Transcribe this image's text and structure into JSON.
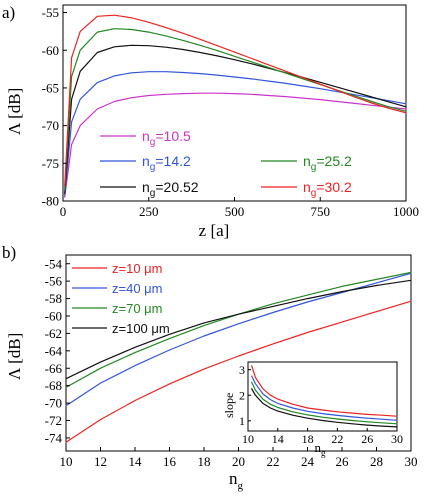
{
  "chart_data": [
    {
      "panel": "a)",
      "type": "line",
      "xlabel": "z [a]",
      "ylabel": "Λ [dB]",
      "xlim": [
        0,
        1000
      ],
      "ylim": [
        -80,
        -54
      ],
      "xticks": [
        0,
        250,
        500,
        750,
        1000
      ],
      "yticks": [
        -80,
        -75,
        -70,
        -65,
        -60,
        -55
      ],
      "grid": false,
      "legend_placement": "lower-center",
      "series": [
        {
          "name": "ng=10.5",
          "name_base": "n",
          "name_sub": "g",
          "name_rest": "=10.5",
          "color": "#cc33cc",
          "x": [
            5,
            25,
            50,
            100,
            150,
            200,
            250,
            300,
            350,
            400,
            450,
            500,
            550,
            600,
            650,
            700,
            750,
            800,
            850,
            900,
            950,
            1000
          ],
          "y": [
            -79.5,
            -72.5,
            -70,
            -67.8,
            -66.8,
            -66.3,
            -66,
            -65.85,
            -65.75,
            -65.7,
            -65.7,
            -65.75,
            -65.85,
            -66,
            -66.15,
            -66.35,
            -66.55,
            -66.8,
            -67.05,
            -67.3,
            -67.55,
            -67.8
          ]
        },
        {
          "name": "ng=14.2",
          "name_base": "n",
          "name_sub": "g",
          "name_rest": "=14.2",
          "color": "#3355dd",
          "x": [
            5,
            25,
            50,
            100,
            150,
            200,
            250,
            300,
            350,
            400,
            450,
            500,
            550,
            600,
            650,
            700,
            750,
            800,
            850,
            900,
            950,
            1000
          ],
          "y": [
            -79.3,
            -69.5,
            -66.5,
            -64.3,
            -63.4,
            -63,
            -62.85,
            -62.85,
            -62.95,
            -63.1,
            -63.3,
            -63.55,
            -63.8,
            -64.1,
            -64.4,
            -64.75,
            -65.1,
            -65.5,
            -65.9,
            -66.3,
            -66.7,
            -67.1
          ]
        },
        {
          "name": "ng=20.52",
          "name_base": "n",
          "name_sub": "g",
          "name_rest": "=20.52",
          "color": "#111111",
          "x": [
            5,
            25,
            50,
            100,
            150,
            200,
            250,
            300,
            350,
            400,
            450,
            500,
            550,
            600,
            650,
            700,
            750,
            800,
            850,
            900,
            950,
            1000
          ],
          "y": [
            -79,
            -66.5,
            -62.8,
            -60.3,
            -59.55,
            -59.35,
            -59.4,
            -59.6,
            -59.9,
            -60.3,
            -60.75,
            -61.25,
            -61.8,
            -62.4,
            -63,
            -63.6,
            -64.25,
            -64.9,
            -65.55,
            -66.2,
            -66.85,
            -67.5
          ]
        },
        {
          "name": "ng=25.2",
          "name_base": "n",
          "name_sub": "g",
          "name_rest": "=25.2",
          "color": "#228822",
          "x": [
            5,
            25,
            50,
            100,
            150,
            200,
            250,
            300,
            350,
            400,
            450,
            500,
            550,
            600,
            650,
            700,
            750,
            800,
            850,
            900,
            950,
            1000
          ],
          "y": [
            -78.5,
            -63.5,
            -60,
            -57.6,
            -57.15,
            -57.25,
            -57.6,
            -58.1,
            -58.7,
            -59.35,
            -60.05,
            -60.8,
            -61.55,
            -62.3,
            -63.05,
            -63.8,
            -64.55,
            -65.3,
            -66.05,
            -66.8,
            -67.5,
            -68.1
          ]
        },
        {
          "name": "ng=30.2",
          "name_base": "n",
          "name_sub": "g",
          "name_rest": "=30.2",
          "color": "#ee2222",
          "x": [
            5,
            25,
            50,
            100,
            150,
            200,
            250,
            300,
            350,
            400,
            450,
            500,
            550,
            600,
            650,
            700,
            750,
            800,
            850,
            900,
            950,
            1000
          ],
          "y": [
            -78,
            -61,
            -57.5,
            -55.5,
            -55.35,
            -55.7,
            -56.3,
            -57,
            -57.75,
            -58.55,
            -59.4,
            -60.25,
            -61.1,
            -61.95,
            -62.8,
            -63.65,
            -64.5,
            -65.35,
            -66.2,
            -67,
            -67.7,
            -68.3
          ]
        }
      ]
    },
    {
      "panel": "b)",
      "type": "line",
      "xlabel": "ng",
      "xlabel_base": "n",
      "xlabel_sub": "g",
      "ylabel": "Λ [dB]",
      "xlim": [
        10,
        30
      ],
      "ylim": [
        -75.5,
        -53
      ],
      "xticks": [
        10,
        12,
        14,
        16,
        18,
        20,
        22,
        24,
        26,
        28,
        30
      ],
      "yticks": [
        -74,
        -72,
        -70,
        -68,
        -66,
        -64,
        -62,
        -60,
        -58,
        -56,
        -54
      ],
      "grid": false,
      "legend_placement": "top-left",
      "series": [
        {
          "name": "z=10 μm",
          "color": "#ee2222",
          "x": [
            10,
            12,
            14,
            16,
            18,
            20,
            22,
            24,
            26,
            28,
            30
          ],
          "y": [
            -74.5,
            -71.9,
            -69.7,
            -67.8,
            -66.1,
            -64.6,
            -63.2,
            -61.9,
            -60.7,
            -59.5,
            -58.3
          ]
        },
        {
          "name": "z=40 μm",
          "color": "#3355dd",
          "x": [
            10,
            12,
            14,
            16,
            18,
            20,
            22,
            24,
            26,
            28,
            30
          ],
          "y": [
            -70.3,
            -67.7,
            -65.7,
            -63.9,
            -62.3,
            -60.9,
            -59.6,
            -58.4,
            -57.3,
            -56.2,
            -55.1
          ]
        },
        {
          "name": "z=70 μm",
          "color": "#228822",
          "x": [
            10,
            12,
            14,
            16,
            18,
            20,
            22,
            24,
            26,
            28,
            30
          ],
          "y": [
            -68.2,
            -66.0,
            -64.2,
            -62.6,
            -61.1,
            -59.8,
            -58.6,
            -57.6,
            -56.6,
            -55.8,
            -55.0
          ]
        },
        {
          "name": "z=100 μm",
          "color": "#111111",
          "x": [
            10,
            12,
            14,
            16,
            18,
            20,
            22,
            24,
            26,
            28,
            30
          ],
          "y": [
            -67.2,
            -65.3,
            -63.6,
            -62.1,
            -60.8,
            -59.8,
            -58.9,
            -58.0,
            -57.2,
            -56.5,
            -55.9
          ]
        }
      ]
    },
    {
      "panel": "b) inset",
      "type": "line",
      "xlabel": "ng",
      "xlabel_base": "n",
      "xlabel_sub": "g",
      "ylabel": "slope",
      "xlim": [
        10,
        30
      ],
      "ylim": [
        0.6,
        3.3
      ],
      "xticks": [
        10,
        14,
        18,
        22,
        26,
        30
      ],
      "yticks": [
        1,
        2,
        3
      ],
      "grid": false,
      "series": [
        {
          "color": "#ee2222",
          "x": [
            10.5,
            11,
            12,
            13,
            14,
            16,
            18,
            20,
            22,
            24,
            26,
            28,
            30
          ],
          "y": [
            3.15,
            2.7,
            2.25,
            2.0,
            1.85,
            1.65,
            1.5,
            1.42,
            1.35,
            1.3,
            1.25,
            1.22,
            1.18
          ]
        },
        {
          "color": "#3355dd",
          "x": [
            10.5,
            11,
            12,
            13,
            14,
            16,
            18,
            20,
            22,
            24,
            26,
            28,
            30
          ],
          "y": [
            2.75,
            2.45,
            2.05,
            1.83,
            1.68,
            1.5,
            1.37,
            1.28,
            1.21,
            1.15,
            1.1,
            1.06,
            1.02
          ]
        },
        {
          "color": "#228822",
          "x": [
            10.5,
            11,
            12,
            13,
            14,
            16,
            18,
            20,
            22,
            24,
            26,
            28,
            30
          ],
          "y": [
            2.5,
            2.2,
            1.85,
            1.65,
            1.52,
            1.35,
            1.23,
            1.14,
            1.07,
            1.01,
            0.96,
            0.92,
            0.88
          ]
        },
        {
          "color": "#111111",
          "x": [
            10.5,
            11,
            12,
            13,
            14,
            16,
            18,
            20,
            22,
            24,
            26,
            28,
            30
          ],
          "y": [
            2.25,
            2.0,
            1.68,
            1.5,
            1.38,
            1.22,
            1.1,
            1.01,
            0.94,
            0.88,
            0.83,
            0.79,
            0.76
          ]
        }
      ]
    }
  ]
}
